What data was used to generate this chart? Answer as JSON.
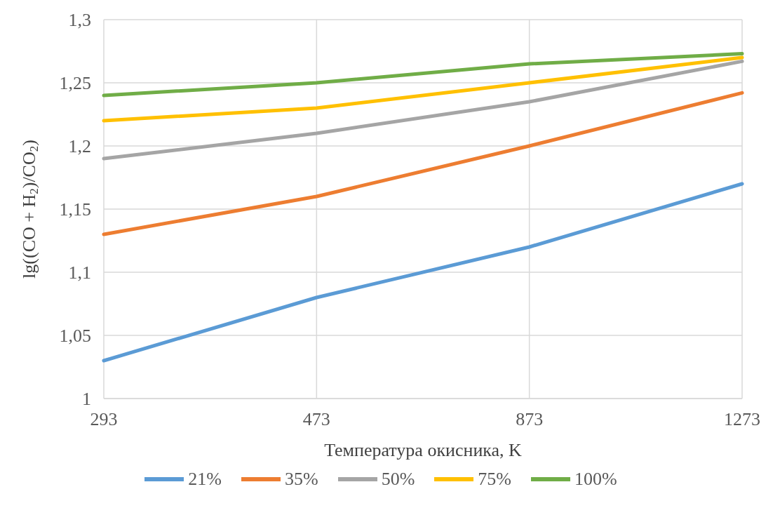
{
  "chart_data": {
    "type": "line",
    "xlabel": "Температура окисника, K",
    "ylabel": "lg((CO + H$_{2}$)/CO$_{2}$)",
    "categories": [
      "293",
      "473",
      "873",
      "1273"
    ],
    "series": [
      {
        "name": "21%",
        "color": "#5b9bd5",
        "values": [
          1.03,
          1.08,
          1.12,
          1.17
        ]
      },
      {
        "name": "35%",
        "color": "#ed7d31",
        "values": [
          1.13,
          1.16,
          1.2,
          1.242
        ]
      },
      {
        "name": "50%",
        "color": "#a5a5a5",
        "values": [
          1.19,
          1.21,
          1.235,
          1.267
        ]
      },
      {
        "name": "75%",
        "color": "#ffc000",
        "values": [
          1.22,
          1.23,
          1.25,
          1.27
        ]
      },
      {
        "name": "100%",
        "color": "#70ad47",
        "values": [
          1.24,
          1.25,
          1.265,
          1.273
        ]
      }
    ],
    "ylim": [
      1,
      1.3
    ],
    "yticks": [
      {
        "value": 1,
        "label": "1"
      },
      {
        "value": 1.05,
        "label": "1,05"
      },
      {
        "value": 1.1,
        "label": "1,1"
      },
      {
        "value": 1.15,
        "label": "1,15"
      },
      {
        "value": 1.2,
        "label": "1,2"
      },
      {
        "value": 1.25,
        "label": "1,25"
      },
      {
        "value": 1.3,
        "label": "1,3"
      }
    ],
    "grid": true,
    "legend": "bottom",
    "marker": "none",
    "line_style": "solid"
  }
}
